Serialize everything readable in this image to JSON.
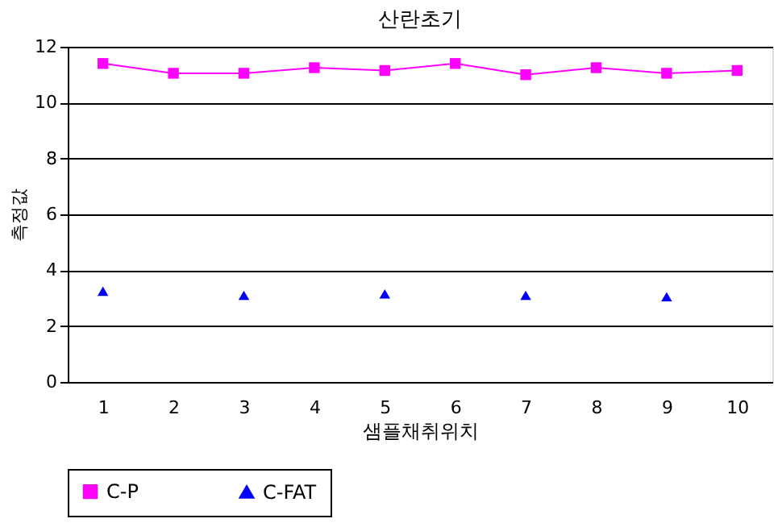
{
  "chart_data": {
    "type": "line",
    "title": "산란초기",
    "xlabel": "샘플채취위치",
    "ylabel": "측정값",
    "categories": [
      "1",
      "2",
      "3",
      "4",
      "5",
      "6",
      "7",
      "8",
      "9",
      "10"
    ],
    "series": [
      {
        "name": "C-P",
        "color": "#ff00ff",
        "marker": "square",
        "values": [
          11.4,
          11.05,
          11.05,
          11.25,
          11.15,
          11.4,
          11.0,
          11.25,
          11.05,
          11.15
        ]
      },
      {
        "name": "C-FAT",
        "color": "#0000ff",
        "type": "scatter",
        "marker": "triangle",
        "x": [
          "1",
          "3",
          "5",
          "7",
          "9"
        ],
        "values": [
          3.25,
          3.1,
          3.15,
          3.1,
          3.05
        ]
      }
    ],
    "ylim": [
      0,
      12
    ],
    "yticks": [
      0,
      2,
      4,
      6,
      8,
      10,
      12
    ],
    "grid": "y",
    "legend": "bottom"
  }
}
